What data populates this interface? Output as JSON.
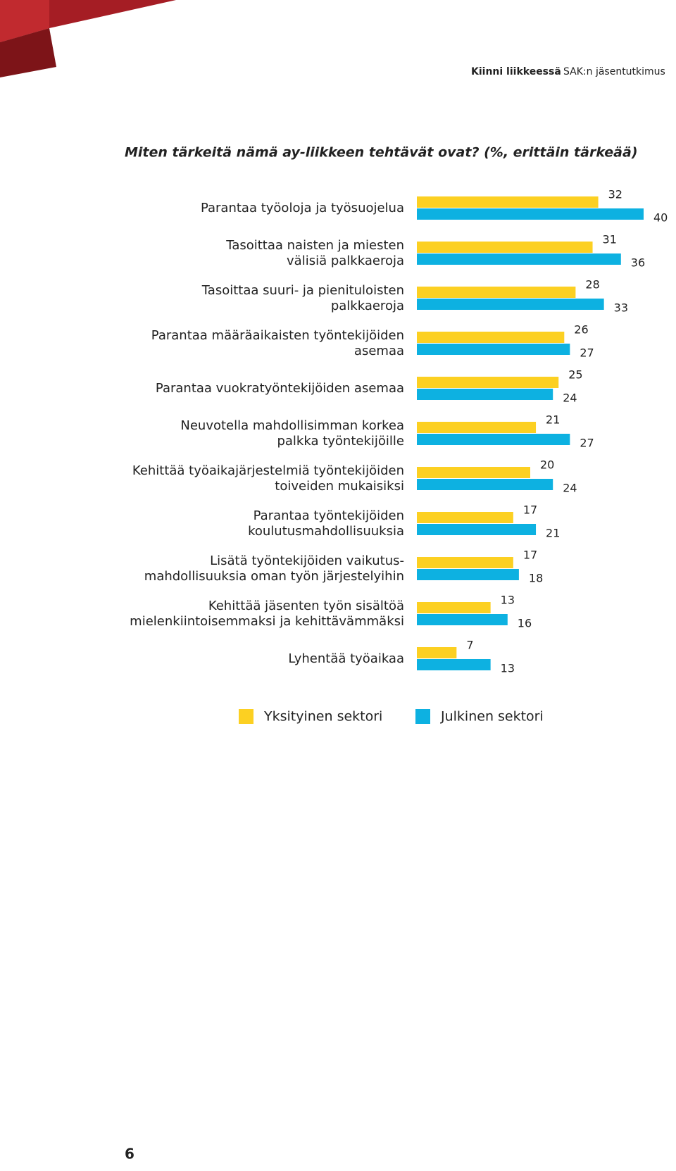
{
  "header": {
    "section": "Kiinni liikkeessä",
    "publication": "SAK:n jäsentutkimus"
  },
  "chart_data": {
    "type": "bar",
    "orientation": "horizontal",
    "title": "Miten tärkeitä nämä ay-liikkeen tehtävät ovat? (%, erittäin tärkeää)",
    "categories": [
      "Parantaa työoloja ja työsuojelua",
      "Tasoittaa naisten ja miesten\nvälisiä palkkaeroja",
      "Tasoittaa suuri- ja pienituloisten\npalkkaeroja",
      "Parantaa määräaikaisten työntekijöiden\nasemaa",
      "Parantaa vuokratyöntekijöiden asemaa",
      "Neuvotella mahdollisimman korkea\npalkka työntekijöille",
      "Kehittää työaikajärjestelmiä työntekijöiden\ntoiveiden mukaisiksi",
      "Parantaa työntekijöiden\nkoulutusmahdollisuuksia",
      "Lisätä työntekijöiden vaikutus-\nmahdollisuuksia oman työn  järjestelyihin",
      "Kehittää jäsenten työn sisältöä\nmielenkiintoisemmaksi ja kehittävämmäksi",
      "Lyhentää työaikaa"
    ],
    "series": [
      {
        "name": "Yksityinen sektori",
        "color": "#fcd022",
        "values": [
          32,
          31,
          28,
          26,
          25,
          21,
          20,
          17,
          17,
          13,
          7
        ]
      },
      {
        "name": "Julkinen sektori",
        "color": "#0db1e1",
        "values": [
          40,
          36,
          33,
          27,
          24,
          27,
          24,
          21,
          18,
          16,
          13
        ]
      }
    ],
    "xlim": [
      0,
      40
    ]
  },
  "page_number": "6"
}
